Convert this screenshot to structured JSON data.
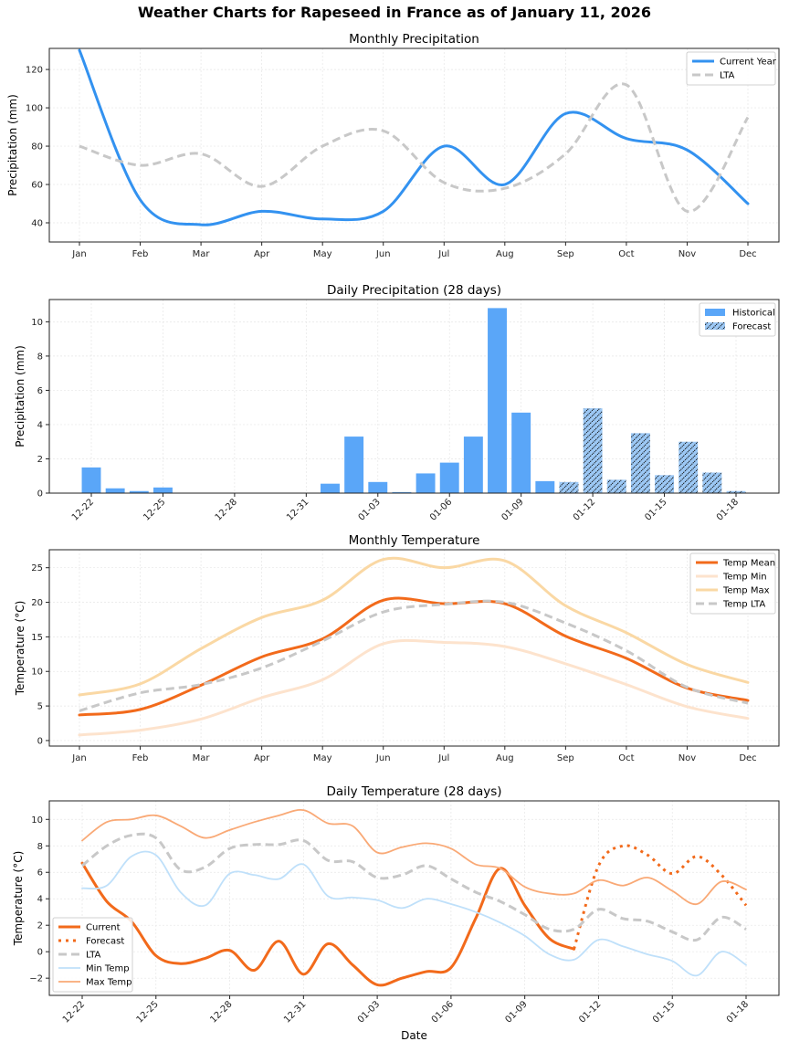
{
  "suptitle": "Weather Charts for Rapeseed in France as of January 11, 2026",
  "colors": {
    "current_precip": "#3392f0",
    "lta": "#c8c8c8",
    "bar_historical": "#5aa6f8",
    "bar_forecast": "#9cc8f5",
    "temp_mean": "#f26a1b",
    "temp_min": "#fde3cd",
    "temp_max": "#fad8a4",
    "daily_min": "#bfe0fa",
    "daily_max": "#f9a976"
  },
  "chart_data": [
    {
      "id": "monthly_precip",
      "type": "line",
      "title": "Monthly Precipitation",
      "xlabel": "",
      "ylabel": "Precipitation (mm)",
      "categories": [
        "Jan",
        "Feb",
        "Mar",
        "Apr",
        "May",
        "Jun",
        "Jul",
        "Aug",
        "Sep",
        "Oct",
        "Nov",
        "Dec"
      ],
      "yticks": [
        40,
        60,
        80,
        100,
        120
      ],
      "ylim": [
        30,
        131
      ],
      "grid": true,
      "legend": "top-right",
      "series": [
        {
          "name": "Current Year",
          "style": "solid",
          "values": [
            130,
            52,
            39,
            46,
            42,
            46,
            80,
            60,
            97,
            84,
            78,
            50
          ]
        },
        {
          "name": "LTA",
          "style": "dashed",
          "values": [
            80,
            70,
            76,
            59,
            80,
            88,
            61,
            58,
            76,
            112,
            46,
            95
          ]
        }
      ]
    },
    {
      "id": "daily_precip",
      "type": "bar",
      "title": "Daily Precipitation (28 days)",
      "xlabel": "",
      "ylabel": "Precipitation (mm)",
      "categories": [
        "12-22",
        "12-23",
        "12-24",
        "12-25",
        "12-26",
        "12-27",
        "12-28",
        "12-29",
        "12-30",
        "12-31",
        "01-01",
        "01-02",
        "01-03",
        "01-04",
        "01-05",
        "01-06",
        "01-07",
        "01-08",
        "01-09",
        "01-10",
        "01-11",
        "01-12",
        "01-13",
        "01-14",
        "01-15",
        "01-16",
        "01-17",
        "01-18"
      ],
      "xticks": [
        "12-22",
        "12-25",
        "12-28",
        "12-31",
        "01-03",
        "01-06",
        "01-09",
        "01-12",
        "01-15",
        "01-18"
      ],
      "yticks": [
        0,
        2,
        4,
        6,
        8,
        10
      ],
      "ylim": [
        0,
        11.3
      ],
      "grid": true,
      "legend": "top-right",
      "series": [
        {
          "name": "Historical",
          "values": [
            1.5,
            0.28,
            0.12,
            0.33,
            0,
            0,
            0,
            0,
            0,
            0,
            0.55,
            3.3,
            0.65,
            0.06,
            1.15,
            1.78,
            3.3,
            10.8,
            4.7,
            0.7,
            null,
            null,
            null,
            null,
            null,
            null,
            null,
            null
          ]
        },
        {
          "name": "Forecast",
          "hatch": true,
          "values": [
            null,
            null,
            null,
            null,
            null,
            null,
            null,
            null,
            null,
            null,
            null,
            null,
            null,
            null,
            null,
            null,
            null,
            null,
            null,
            null,
            0.65,
            4.95,
            0.78,
            3.5,
            1.05,
            3.0,
            1.2,
            0.12
          ]
        }
      ]
    },
    {
      "id": "monthly_temp",
      "type": "line",
      "title": "Monthly Temperature",
      "xlabel": "",
      "ylabel": "Temperature (°C)",
      "categories": [
        "Jan",
        "Feb",
        "Mar",
        "Apr",
        "May",
        "Jun",
        "Jul",
        "Aug",
        "Sep",
        "Oct",
        "Nov",
        "Dec"
      ],
      "yticks": [
        0,
        5,
        10,
        15,
        20,
        25
      ],
      "ylim": [
        -0.8,
        27.6
      ],
      "grid": true,
      "legend": "top-right",
      "series": [
        {
          "name": "Temp Mean",
          "style": "solid-thick",
          "values": [
            3.7,
            4.5,
            8.0,
            12.1,
            14.7,
            20.3,
            19.8,
            19.8,
            15.1,
            11.9,
            7.6,
            5.8
          ]
        },
        {
          "name": "Temp Min",
          "style": "solid-light",
          "values": [
            0.8,
            1.5,
            3.1,
            6.2,
            8.8,
            14.0,
            14.2,
            13.6,
            11.1,
            8.1,
            4.9,
            3.2
          ]
        },
        {
          "name": "Temp Max",
          "style": "solid-light",
          "values": [
            6.6,
            8.2,
            13.3,
            17.8,
            20.3,
            26.2,
            25.0,
            26.0,
            19.5,
            15.6,
            11.0,
            8.4
          ]
        },
        {
          "name": "Temp LTA",
          "style": "dashed",
          "values": [
            4.3,
            6.9,
            8.1,
            10.5,
            14.4,
            18.6,
            19.7,
            20.0,
            17.0,
            13.0,
            7.7,
            5.4
          ]
        }
      ]
    },
    {
      "id": "daily_temp",
      "type": "line",
      "title": "Daily Temperature (28 days)",
      "xlabel": "Date",
      "ylabel": "Temperature (°C)",
      "categories": [
        "12-22",
        "12-23",
        "12-24",
        "12-25",
        "12-26",
        "12-27",
        "12-28",
        "12-29",
        "12-30",
        "12-31",
        "01-01",
        "01-02",
        "01-03",
        "01-04",
        "01-05",
        "01-06",
        "01-07",
        "01-08",
        "01-09",
        "01-10",
        "01-11",
        "01-12",
        "01-13",
        "01-14",
        "01-15",
        "01-16",
        "01-17",
        "01-18"
      ],
      "xticks": [
        "12-22",
        "12-25",
        "12-28",
        "12-31",
        "01-03",
        "01-06",
        "01-09",
        "01-12",
        "01-15",
        "01-18"
      ],
      "yticks": [
        -2,
        0,
        2,
        4,
        6,
        8,
        10
      ],
      "ylim": [
        -3.3,
        11.4
      ],
      "grid": true,
      "legend": "lower-left",
      "series": [
        {
          "name": "Current",
          "style": "solid-thick",
          "values": [
            6.7,
            3.8,
            2.3,
            -0.3,
            -0.9,
            -0.5,
            0.1,
            -1.4,
            0.8,
            -1.7,
            0.6,
            -1.0,
            -2.5,
            -2.0,
            -1.5,
            -1.2,
            2.5,
            6.3,
            3.5,
            1.0,
            0.2,
            null,
            null,
            null,
            null,
            null,
            null,
            null
          ]
        },
        {
          "name": "Forecast",
          "style": "dotted",
          "values": [
            null,
            null,
            null,
            null,
            null,
            null,
            null,
            null,
            null,
            null,
            null,
            null,
            null,
            null,
            null,
            null,
            null,
            null,
            null,
            null,
            0.2,
            6.5,
            8.0,
            7.3,
            5.9,
            7.2,
            5.8,
            3.5
          ]
        },
        {
          "name": "LTA",
          "style": "dashed",
          "values": [
            6.5,
            8.0,
            8.8,
            8.6,
            6.2,
            6.4,
            7.8,
            8.1,
            8.1,
            8.4,
            6.9,
            6.8,
            5.6,
            5.8,
            6.5,
            5.5,
            4.5,
            3.8,
            2.8,
            1.7,
            1.7,
            3.2,
            2.5,
            2.3,
            1.5,
            0.9,
            2.6,
            1.7
          ]
        },
        {
          "name": "Min Temp",
          "style": "solid-light",
          "values": [
            4.8,
            5.0,
            7.2,
            7.3,
            4.5,
            3.5,
            5.9,
            5.8,
            5.5,
            6.6,
            4.2,
            4.1,
            3.9,
            3.3,
            4.0,
            3.6,
            3.0,
            2.2,
            1.2,
            -0.2,
            -0.6,
            0.9,
            0.4,
            -0.2,
            -0.7,
            -1.8,
            0.0,
            -1.0
          ]
        },
        {
          "name": "Max Temp",
          "style": "solid-light",
          "values": [
            8.4,
            9.8,
            10.0,
            10.3,
            9.5,
            8.6,
            9.2,
            9.8,
            10.3,
            10.7,
            9.7,
            9.5,
            7.5,
            7.9,
            8.2,
            7.8,
            6.6,
            6.3,
            4.9,
            4.4,
            4.4,
            5.4,
            5.0,
            5.6,
            4.6,
            3.6,
            5.3,
            4.7
          ]
        }
      ]
    }
  ]
}
